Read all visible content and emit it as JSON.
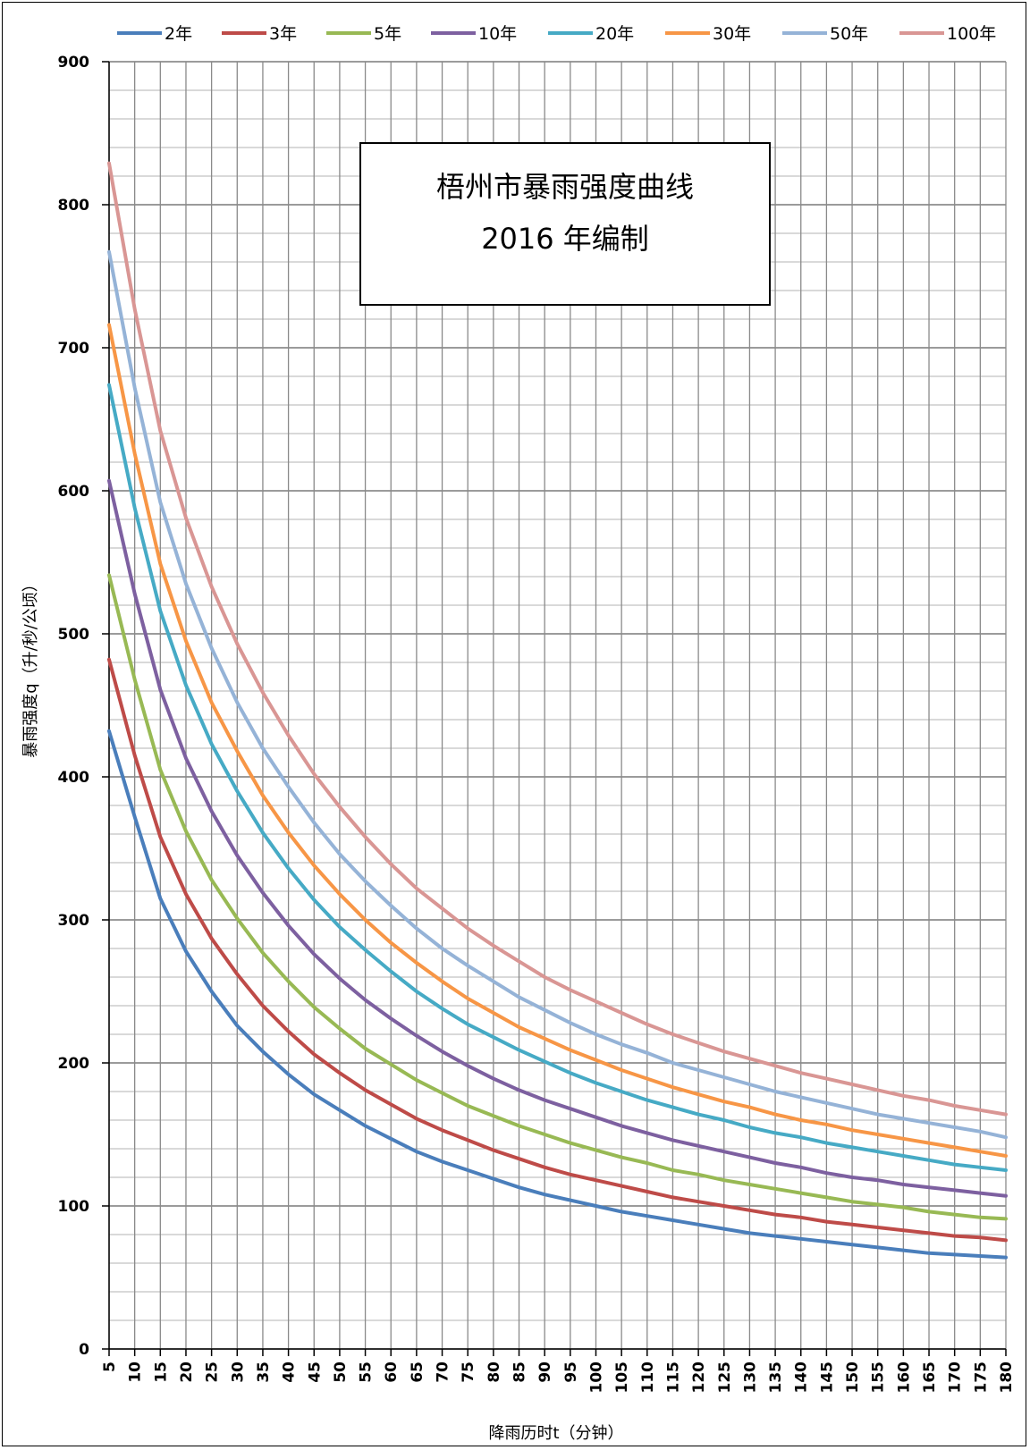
{
  "chart_data": {
    "type": "line",
    "title": "梧州市暴雨强度曲线",
    "subtitle": "2016 年编制",
    "xlabel": "降雨历时t（分钟）",
    "ylabel": "暴雨强度q（升/秒/公顷）",
    "xlim": [
      5,
      180
    ],
    "ylim": [
      0,
      900
    ],
    "x_ticks": [
      5,
      10,
      15,
      20,
      25,
      30,
      35,
      40,
      45,
      50,
      55,
      60,
      65,
      70,
      75,
      80,
      85,
      90,
      95,
      100,
      105,
      110,
      115,
      120,
      125,
      130,
      135,
      140,
      145,
      150,
      155,
      160,
      165,
      170,
      175,
      180
    ],
    "y_ticks": [
      0,
      100,
      200,
      300,
      400,
      500,
      600,
      700,
      800,
      900
    ],
    "grid": true,
    "legend_position": "top",
    "x": [
      5,
      10,
      15,
      20,
      25,
      30,
      35,
      40,
      45,
      50,
      55,
      60,
      65,
      70,
      75,
      80,
      85,
      90,
      95,
      100,
      105,
      110,
      115,
      120,
      125,
      130,
      135,
      140,
      145,
      150,
      155,
      160,
      165,
      170,
      175,
      180
    ],
    "series": [
      {
        "name": "2年",
        "color": "#4a7ebb",
        "values": [
          432,
          372,
          315,
          278,
          250,
          226,
          208,
          192,
          178,
          167,
          156,
          147,
          138,
          131,
          125,
          119,
          113,
          108,
          104,
          100,
          96,
          93,
          90,
          87,
          84,
          81,
          79,
          77,
          75,
          73,
          71,
          69,
          67,
          66,
          65,
          64
        ]
      },
      {
        "name": "3年",
        "color": "#be4b48",
        "values": [
          482,
          415,
          358,
          318,
          287,
          262,
          240,
          222,
          206,
          193,
          181,
          171,
          161,
          153,
          146,
          139,
          133,
          127,
          122,
          118,
          114,
          110,
          106,
          103,
          100,
          97,
          94,
          92,
          89,
          87,
          85,
          83,
          81,
          79,
          78,
          76
        ]
      },
      {
        "name": "5年",
        "color": "#98b954",
        "values": [
          541,
          468,
          405,
          362,
          328,
          301,
          277,
          257,
          239,
          224,
          210,
          199,
          188,
          179,
          170,
          163,
          156,
          150,
          144,
          139,
          134,
          130,
          125,
          122,
          118,
          115,
          112,
          109,
          106,
          103,
          101,
          99,
          96,
          94,
          92,
          91
        ]
      },
      {
        "name": "10年",
        "color": "#7d60a0",
        "values": [
          607,
          528,
          461,
          413,
          376,
          345,
          319,
          296,
          276,
          259,
          244,
          231,
          219,
          208,
          198,
          189,
          181,
          174,
          168,
          162,
          156,
          151,
          146,
          142,
          138,
          134,
          130,
          127,
          123,
          120,
          118,
          115,
          113,
          111,
          109,
          107
        ]
      },
      {
        "name": "20年",
        "color": "#46aac5",
        "values": [
          674,
          588,
          516,
          464,
          423,
          390,
          361,
          336,
          314,
          295,
          279,
          264,
          250,
          238,
          227,
          218,
          209,
          201,
          193,
          186,
          180,
          174,
          169,
          164,
          160,
          155,
          151,
          148,
          144,
          141,
          138,
          135,
          132,
          129,
          127,
          125
        ]
      },
      {
        "name": "30年",
        "color": "#f79646",
        "values": [
          716,
          626,
          549,
          495,
          452,
          418,
          387,
          361,
          338,
          318,
          300,
          284,
          270,
          257,
          245,
          235,
          225,
          217,
          209,
          202,
          195,
          189,
          183,
          178,
          173,
          169,
          164,
          160,
          157,
          153,
          150,
          147,
          144,
          141,
          138,
          135
        ]
      },
      {
        "name": "50年",
        "color": "#95b3d7",
        "values": [
          767,
          672,
          592,
          535,
          490,
          452,
          420,
          393,
          368,
          346,
          327,
          310,
          294,
          280,
          268,
          257,
          246,
          237,
          228,
          220,
          213,
          207,
          200,
          195,
          190,
          185,
          180,
          176,
          172,
          168,
          164,
          161,
          158,
          155,
          152,
          148
        ]
      },
      {
        "name": "100年",
        "color": "#d99694",
        "values": [
          829,
          727,
          642,
          581,
          533,
          493,
          459,
          429,
          402,
          379,
          358,
          339,
          322,
          308,
          294,
          282,
          271,
          260,
          251,
          243,
          235,
          227,
          220,
          214,
          208,
          203,
          198,
          193,
          189,
          185,
          181,
          177,
          174,
          170,
          167,
          164
        ]
      }
    ]
  }
}
